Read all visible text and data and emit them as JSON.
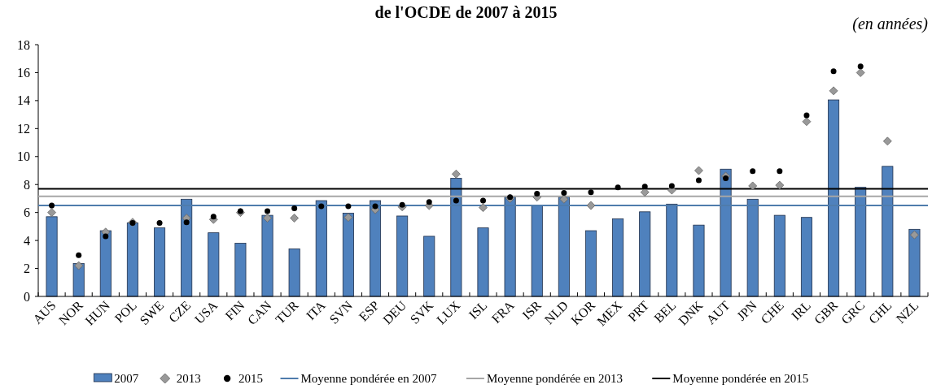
{
  "chart_data": {
    "type": "bar",
    "title": "de l'OCDE de 2007 à 2015",
    "annotations": [
      "(en années)"
    ],
    "categories": [
      "AUS",
      "NOR",
      "HUN",
      "POL",
      "SWE",
      "CZE",
      "USA",
      "FIN",
      "CAN",
      "TUR",
      "ITA",
      "SVN",
      "ESP",
      "DEU",
      "SVK",
      "LUX",
      "ISL",
      "FRA",
      "ISR",
      "NLD",
      "KOR",
      "MEX",
      "PRT",
      "BEL",
      "DNK",
      "AUT",
      "JPN",
      "CHE",
      "IRL",
      "GBR",
      "GRC",
      "CHL",
      "NZL"
    ],
    "series": [
      {
        "name": "2007",
        "color": "#4f81bd",
        "values": [
          5.7,
          2.35,
          4.7,
          5.25,
          4.9,
          6.95,
          4.55,
          3.8,
          5.8,
          3.4,
          6.85,
          5.95,
          6.85,
          5.75,
          4.3,
          8.45,
          4.9,
          7.1,
          6.5,
          7.1,
          4.7,
          5.55,
          6.05,
          6.6,
          5.1,
          9.1,
          6.95,
          5.8,
          5.65,
          14.05,
          7.8,
          9.3,
          4.8
        ]
      },
      {
        "name": "2013",
        "type": "scatter",
        "marker": "diamond",
        "color": "#999999",
        "values": [
          6.0,
          2.2,
          4.6,
          5.3,
          null,
          5.6,
          5.5,
          6.0,
          5.6,
          5.6,
          null,
          5.65,
          6.2,
          6.4,
          6.5,
          8.75,
          6.35,
          7.0,
          7.1,
          6.95,
          6.5,
          null,
          7.45,
          7.6,
          9.0,
          8.6,
          7.9,
          7.95,
          12.5,
          14.7,
          16.0,
          11.1,
          4.4
        ]
      },
      {
        "name": "2015",
        "type": "scatter",
        "marker": "circle",
        "color": "#000000",
        "values": [
          6.5,
          2.95,
          4.3,
          5.25,
          5.25,
          5.3,
          5.7,
          6.1,
          6.1,
          6.3,
          6.45,
          6.45,
          6.45,
          6.55,
          6.75,
          6.85,
          6.85,
          7.1,
          7.35,
          7.4,
          7.45,
          7.8,
          7.85,
          7.9,
          8.3,
          8.45,
          8.95,
          8.95,
          12.95,
          16.1,
          16.45,
          null,
          null
        ]
      }
    ],
    "ref_lines": [
      {
        "axis": "y",
        "value": 6.5,
        "label": "Moyenne pondérée en 2007",
        "color": "#4f7cac"
      },
      {
        "axis": "y",
        "value": 7.15,
        "label": "Moyenne pondérée en 2013",
        "color": "#a6a6a6"
      },
      {
        "axis": "y",
        "value": 7.7,
        "label": "Moyenne pondérée en 2015",
        "color": "#000000"
      }
    ],
    "ylim": [
      0,
      18
    ],
    "yticks": [
      0,
      2,
      4,
      6,
      8,
      10,
      12,
      14,
      16,
      18
    ],
    "grid": false,
    "legend": "bottom"
  }
}
